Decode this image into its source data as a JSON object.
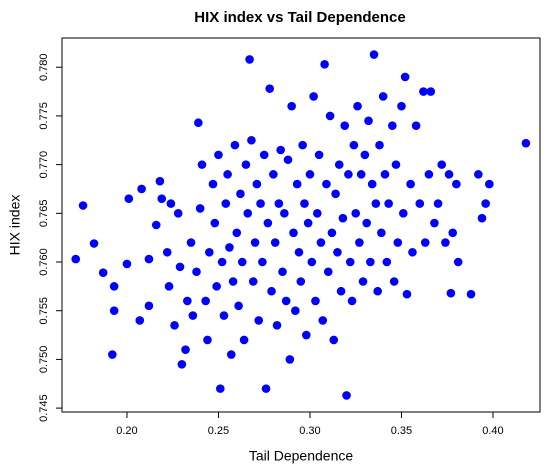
{
  "chart_data": {
    "type": "scatter",
    "title": "HIX index vs Tail Dependence",
    "x_label": "Tail Dependence",
    "y_label": "HIX index",
    "color": "#0000ff",
    "x": [
      0.172,
      0.176,
      0.182,
      0.187,
      0.192,
      0.193,
      0.193,
      0.2,
      0.201,
      0.207,
      0.208,
      0.212,
      0.212,
      0.216,
      0.218,
      0.219,
      0.222,
      0.223,
      0.224,
      0.226,
      0.228,
      0.229,
      0.23,
      0.232,
      0.233,
      0.235,
      0.236,
      0.238,
      0.239,
      0.24,
      0.241,
      0.243,
      0.244,
      0.245,
      0.247,
      0.248,
      0.249,
      0.25,
      0.251,
      0.252,
      0.253,
      0.254,
      0.255,
      0.256,
      0.257,
      0.258,
      0.259,
      0.26,
      0.261,
      0.262,
      0.263,
      0.264,
      0.265,
      0.266,
      0.267,
      0.268,
      0.269,
      0.27,
      0.271,
      0.272,
      0.273,
      0.274,
      0.275,
      0.276,
      0.277,
      0.278,
      0.279,
      0.28,
      0.281,
      0.282,
      0.283,
      0.284,
      0.285,
      0.286,
      0.287,
      0.288,
      0.289,
      0.29,
      0.291,
      0.292,
      0.293,
      0.294,
      0.295,
      0.296,
      0.297,
      0.298,
      0.299,
      0.3,
      0.301,
      0.302,
      0.303,
      0.304,
      0.305,
      0.306,
      0.307,
      0.308,
      0.309,
      0.31,
      0.311,
      0.312,
      0.313,
      0.314,
      0.315,
      0.316,
      0.317,
      0.318,
      0.319,
      0.32,
      0.321,
      0.322,
      0.323,
      0.324,
      0.325,
      0.326,
      0.327,
      0.328,
      0.329,
      0.33,
      0.331,
      0.332,
      0.333,
      0.334,
      0.335,
      0.336,
      0.337,
      0.338,
      0.339,
      0.34,
      0.341,
      0.342,
      0.343,
      0.345,
      0.346,
      0.347,
      0.348,
      0.35,
      0.351,
      0.352,
      0.353,
      0.355,
      0.356,
      0.358,
      0.36,
      0.362,
      0.363,
      0.365,
      0.366,
      0.368,
      0.37,
      0.372,
      0.374,
      0.376,
      0.377,
      0.378,
      0.38,
      0.381,
      0.388,
      0.392,
      0.394,
      0.396,
      0.398,
      0.418
    ],
    "values": [
      0.7603,
      0.7658,
      0.7619,
      0.7589,
      0.7505,
      0.7575,
      0.755,
      0.7598,
      0.7665,
      0.754,
      0.7675,
      0.7555,
      0.7603,
      0.7638,
      0.7683,
      0.7665,
      0.761,
      0.7575,
      0.766,
      0.7535,
      0.765,
      0.7595,
      0.7495,
      0.751,
      0.756,
      0.762,
      0.7545,
      0.759,
      0.7743,
      0.7655,
      0.77,
      0.756,
      0.752,
      0.761,
      0.768,
      0.764,
      0.7575,
      0.771,
      0.747,
      0.76,
      0.7545,
      0.766,
      0.769,
      0.7615,
      0.7505,
      0.758,
      0.772,
      0.763,
      0.7555,
      0.767,
      0.76,
      0.752,
      0.77,
      0.765,
      0.7808,
      0.7725,
      0.758,
      0.762,
      0.768,
      0.754,
      0.766,
      0.76,
      0.771,
      0.747,
      0.764,
      0.7778,
      0.757,
      0.769,
      0.762,
      0.7535,
      0.766,
      0.7715,
      0.759,
      0.765,
      0.756,
      0.7705,
      0.75,
      0.776,
      0.763,
      0.755,
      0.768,
      0.761,
      0.758,
      0.772,
      0.766,
      0.7525,
      0.764,
      0.769,
      0.76,
      0.777,
      0.756,
      0.765,
      0.771,
      0.762,
      0.754,
      0.7803,
      0.768,
      0.759,
      0.775,
      0.763,
      0.752,
      0.767,
      0.761,
      0.77,
      0.757,
      0.7645,
      0.774,
      0.7463,
      0.769,
      0.76,
      0.756,
      0.772,
      0.765,
      0.776,
      0.762,
      0.769,
      0.758,
      0.771,
      0.764,
      0.7745,
      0.76,
      0.768,
      0.7813,
      0.766,
      0.757,
      0.772,
      0.763,
      0.777,
      0.769,
      0.76,
      0.766,
      0.774,
      0.758,
      0.77,
      0.762,
      0.776,
      0.765,
      0.779,
      0.7567,
      0.768,
      0.761,
      0.774,
      0.766,
      0.7775,
      0.762,
      0.769,
      0.7775,
      0.764,
      0.766,
      0.77,
      0.762,
      0.769,
      0.7568,
      0.763,
      0.768,
      0.76,
      0.7567,
      0.769,
      0.7645,
      0.766,
      0.768,
      0.7722
    ],
    "xlim": [
      0.1645,
      0.4257
    ],
    "ylim": [
      0.7446,
      0.783
    ],
    "xticks": [
      {
        "value": 0.2,
        "label": "0.20"
      },
      {
        "value": 0.25,
        "label": "0.25"
      },
      {
        "value": 0.3,
        "label": "0.30"
      },
      {
        "value": 0.35,
        "label": "0.35"
      },
      {
        "value": 0.4,
        "label": "0.40"
      }
    ],
    "yticks": [
      0.745,
      {
        "value": 0.75,
        "label": "0.750"
      },
      0.755,
      {
        "value": 0.76,
        "label": "0.760"
      },
      0.765,
      {
        "value": 0.77,
        "label": "0.770"
      },
      0.775,
      {
        "value": 0.78,
        "label": "0.780"
      }
    ]
  }
}
